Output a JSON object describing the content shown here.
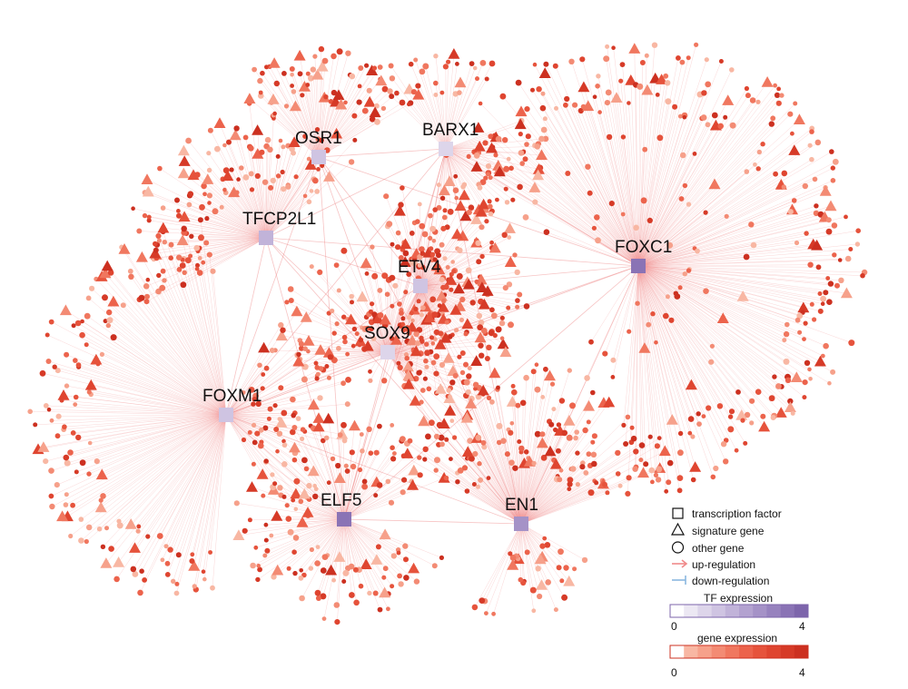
{
  "transcription_factors": [
    {
      "name": "OSR1",
      "tf_expression": 1.2
    },
    {
      "name": "BARX1",
      "tf_expression": 1.0
    },
    {
      "name": "TFCP2L1",
      "tf_expression": 1.8
    },
    {
      "name": "FOXC1",
      "tf_expression": 3.4
    },
    {
      "name": "ETV4",
      "tf_expression": 1.2
    },
    {
      "name": "SOX9",
      "tf_expression": 1.0
    },
    {
      "name": "FOXM1",
      "tf_expression": 1.2
    },
    {
      "name": "ELF5",
      "tf_expression": 3.4
    },
    {
      "name": "EN1",
      "tf_expression": 2.8
    }
  ],
  "legend": {
    "shapes": [
      {
        "shape": "square",
        "label": "transcription factor"
      },
      {
        "shape": "triangle",
        "label": "signature gene"
      },
      {
        "shape": "circle",
        "label": "other gene"
      }
    ],
    "edges": [
      {
        "type": "up",
        "label": "up-regulation",
        "color": "#f08a8a"
      },
      {
        "type": "down",
        "label": "down-regulation",
        "color": "#8ab8e0"
      }
    ],
    "tf_scale": {
      "title": "TF expression",
      "min_label": "0",
      "max_label": "4",
      "colors": [
        "#ffffff",
        "#ece8f3",
        "#ddd5ea",
        "#cfc4e2",
        "#c1b3d9",
        "#b3a2d0",
        "#a592c7",
        "#9782be",
        "#8a73b5",
        "#7d65ab"
      ]
    },
    "gene_scale": {
      "title": "gene expression",
      "min_label": "0",
      "max_label": "4",
      "colors": [
        "#ffffff",
        "#f8b7a3",
        "#f6a18b",
        "#f38b74",
        "#f0775f",
        "#ec634c",
        "#e6533c",
        "#df4530",
        "#d63a27",
        "#cc3020"
      ]
    }
  }
}
